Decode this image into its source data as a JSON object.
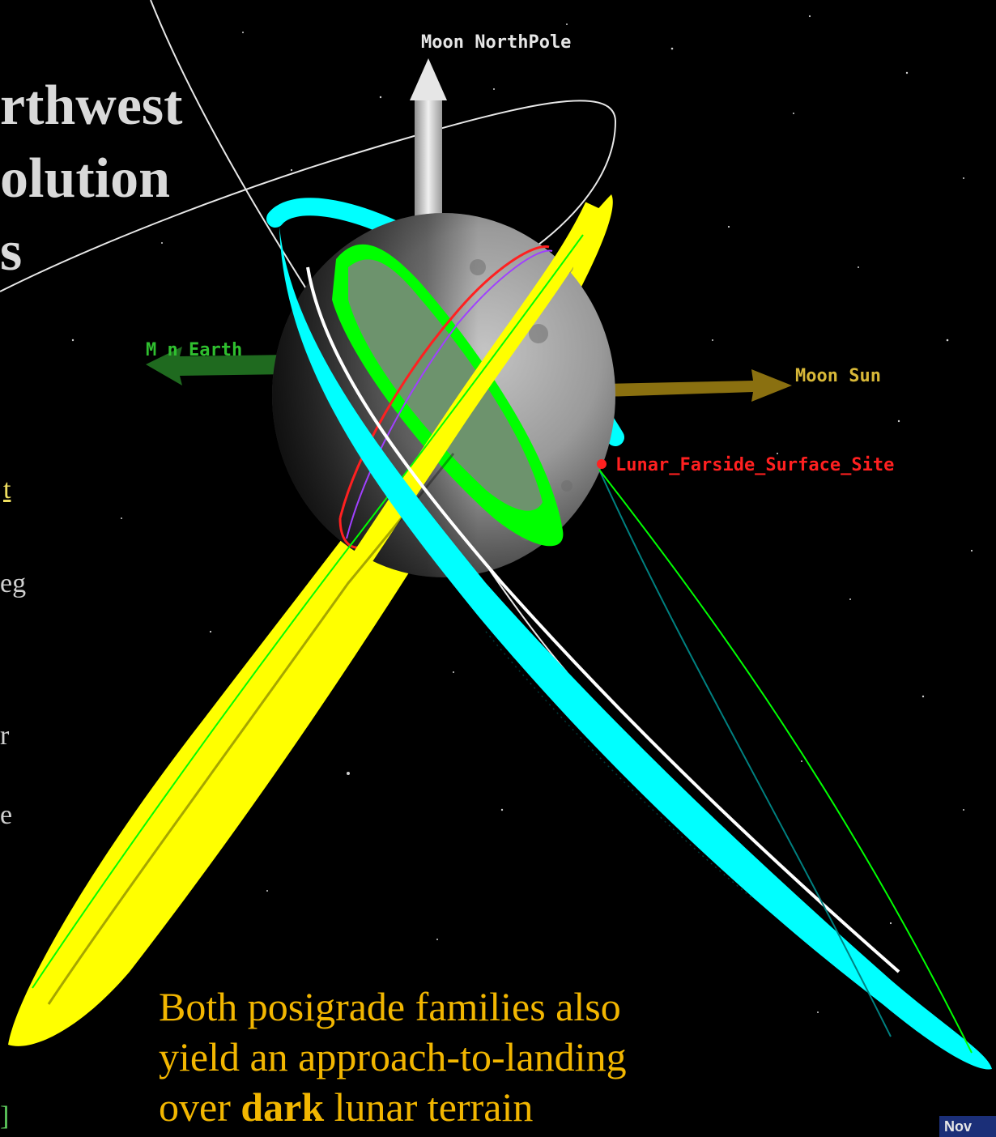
{
  "slide": {
    "title_lines": [
      "rthwest",
      "olution",
      "s"
    ],
    "left_fragments": [
      "t",
      "eg",
      "r",
      "e",
      "]"
    ],
    "caption": {
      "line1": "Both posigrade families also",
      "line2": "yield an approach-to-landing",
      "line3_pre": "over ",
      "line3_bold": "dark",
      "line3_post": " lunar terrain"
    }
  },
  "viewer": {
    "labels": {
      "north_pole": "Moon NorthPole",
      "earth": "M  n Earth",
      "sun": "Moon Sun",
      "site": "Lunar_Farside_Surface_Site"
    },
    "timeline_tag": "Nov",
    "colors": {
      "background": "#000000",
      "cyan_orbit": "#00ffff",
      "yellow_orbit": "#ffff00",
      "green_orbit": "#00ff00",
      "north_pole_vector": "#c8c8c8",
      "earth_vector": "#1f6a1f",
      "sun_vector": "#8a7010",
      "site_label": "#ff2020",
      "caption_text": "#f2b600",
      "title_text": "#d9d9d9"
    }
  }
}
